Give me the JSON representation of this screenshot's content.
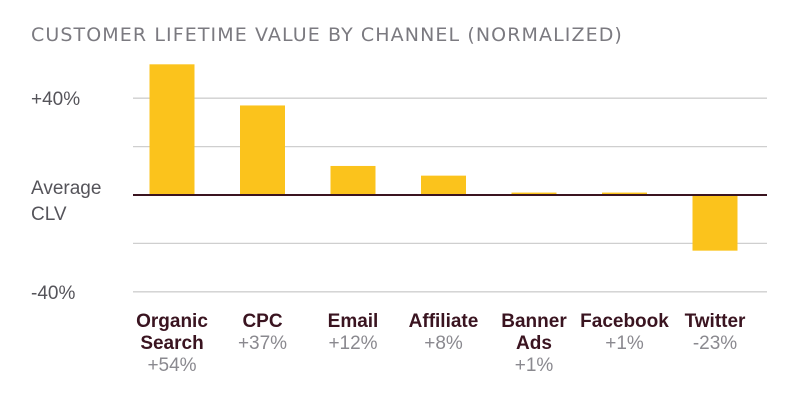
{
  "chart_data": {
    "type": "bar",
    "title": "CUSTOMER LIFETIME VALUE BY CHANNEL (NORMALIZED)",
    "baseline_label": [
      "Average",
      "CLV"
    ],
    "yticks": [
      {
        "value": 40,
        "label": "+40%"
      },
      {
        "value": -40,
        "label": "-40%"
      }
    ],
    "ylim": [
      -40,
      40
    ],
    "grid": true,
    "categories": [
      {
        "name_lines": [
          "Organic",
          "Search"
        ],
        "value": 54,
        "value_label": "+54%"
      },
      {
        "name_lines": [
          "CPC"
        ],
        "value": 37,
        "value_label": "+37%"
      },
      {
        "name_lines": [
          "Email"
        ],
        "value": 12,
        "value_label": "+12%"
      },
      {
        "name_lines": [
          "Affiliate"
        ],
        "value": 8,
        "value_label": "+8%"
      },
      {
        "name_lines": [
          "Banner",
          "Ads"
        ],
        "value": 1,
        "value_label": "+1%"
      },
      {
        "name_lines": [
          "Facebook"
        ],
        "value": 1,
        "value_label": "+1%"
      },
      {
        "name_lines": [
          "Twitter"
        ],
        "value": -23,
        "value_label": "-23%"
      }
    ],
    "colors": {
      "bar": "#fbc31c",
      "grid": "#cfcfcf",
      "zero_line": "#3a1420"
    }
  }
}
